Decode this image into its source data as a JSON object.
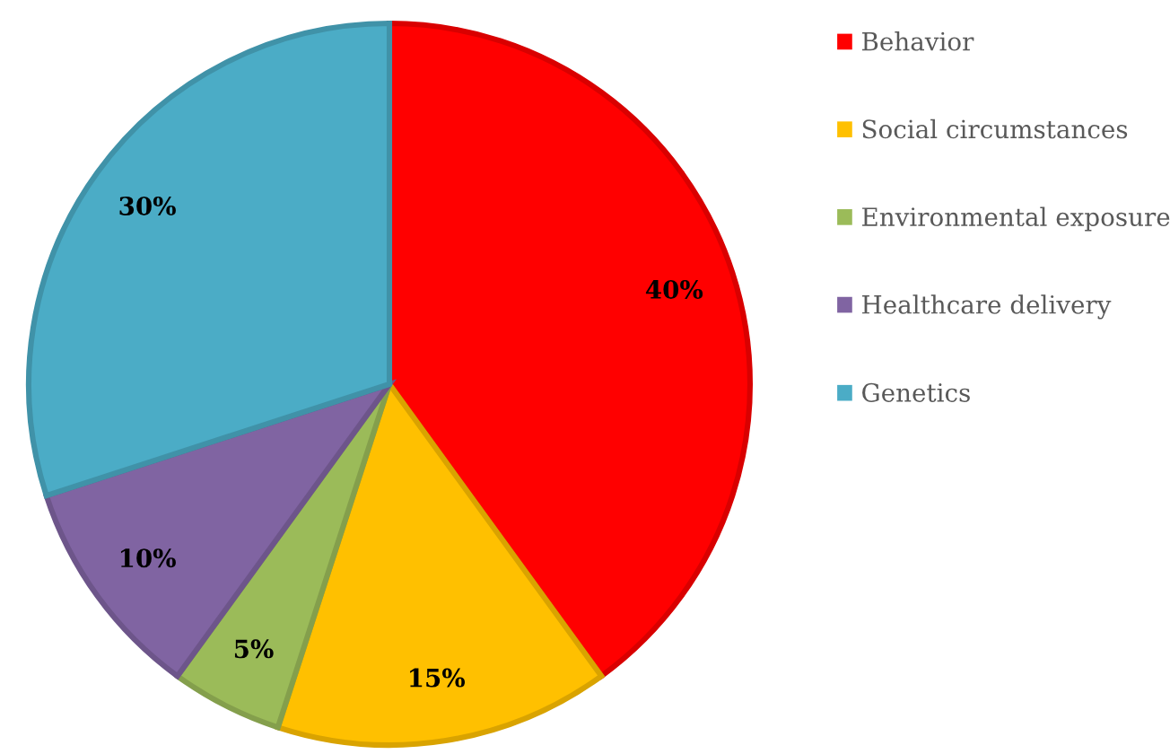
{
  "chart_data": {
    "type": "pie",
    "categories": [
      "Behavior",
      "Social circumstances",
      "Environmental exposure",
      "Healthcare delivery",
      "Genetics"
    ],
    "values": [
      40,
      15,
      5,
      10,
      30
    ],
    "colors": [
      "#ff0000",
      "#ffc000",
      "#9bbb59",
      "#8064a2",
      "#4bacc6"
    ],
    "value_labels": [
      "40%",
      "15%",
      "5%",
      "10%",
      "30%"
    ],
    "legend": "right"
  }
}
